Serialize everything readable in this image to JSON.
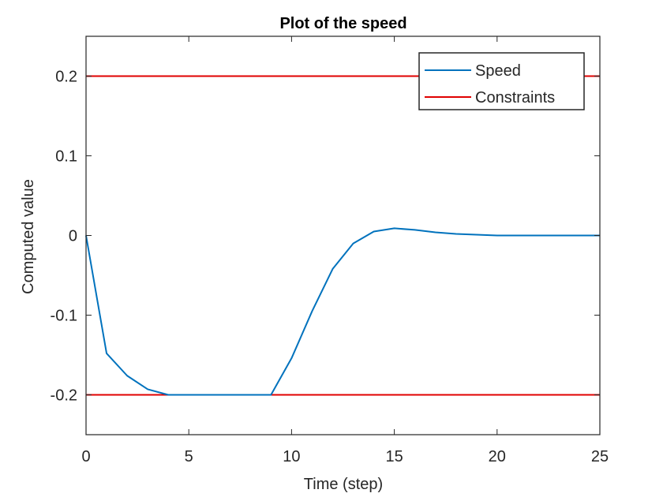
{
  "chart_data": {
    "type": "line",
    "title": "Plot of the speed",
    "xlabel": "Time (step)",
    "ylabel": "Computed value",
    "xlim": [
      0,
      25
    ],
    "ylim": [
      -0.25,
      0.25
    ],
    "xticks": [
      0,
      5,
      10,
      15,
      20,
      25
    ],
    "xtick_labels": [
      "0",
      "5",
      "10",
      "15",
      "20",
      "25"
    ],
    "yticks": [
      -0.2,
      -0.1,
      0,
      0.1,
      0.2
    ],
    "ytick_labels": [
      "-0.2",
      "-0.1",
      "0",
      "0.1",
      "0.2"
    ],
    "grid": false,
    "legend_position": "top-right",
    "series": [
      {
        "name": "Speed",
        "color": "#0072BD",
        "x": [
          0,
          1,
          2,
          3,
          4,
          5,
          6,
          7,
          8,
          9,
          10,
          11,
          12,
          13,
          14,
          15,
          16,
          17,
          18,
          19,
          20,
          21,
          22,
          23,
          24,
          25
        ],
        "y": [
          0,
          -0.148,
          -0.176,
          -0.193,
          -0.2,
          -0.2,
          -0.2,
          -0.2,
          -0.2,
          -0.2,
          -0.154,
          -0.095,
          -0.042,
          -0.01,
          0.005,
          0.009,
          0.007,
          0.004,
          0.002,
          0.001,
          0.0,
          0.0,
          0.0,
          0.0,
          0.0,
          0.0
        ]
      },
      {
        "name": "Constraints",
        "color": "#E00000",
        "segments": [
          {
            "x": [
              0,
              25
            ],
            "y": [
              0.2,
              0.2
            ]
          },
          {
            "x": [
              0,
              25
            ],
            "y": [
              -0.2,
              -0.2
            ]
          }
        ]
      }
    ]
  }
}
